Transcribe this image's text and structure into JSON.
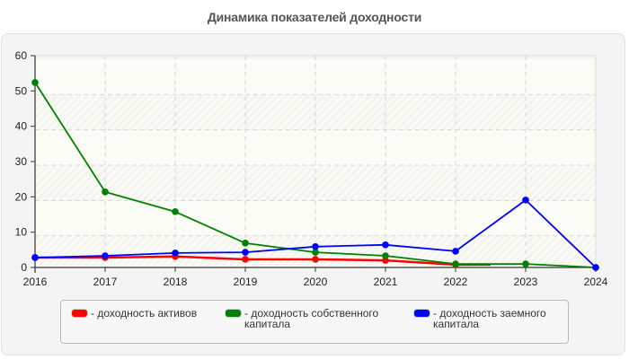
{
  "title": "Динамика показателей доходности",
  "legend": {
    "items": [
      {
        "label": "- доходность активов",
        "color": "#ff0000"
      },
      {
        "label": "- доходность собственного\nкапитала",
        "color": "#008000"
      },
      {
        "label": "- доходность заемного\nкапитала",
        "color": "#0000ff"
      }
    ]
  },
  "chart_data": {
    "type": "line",
    "title": "Динамика показателей доходности",
    "xlabel": "",
    "ylabel": "",
    "x": [
      "2016",
      "2017",
      "2018",
      "2019",
      "2020",
      "2021",
      "2022",
      "2023",
      "2024"
    ],
    "ylim": [
      0,
      60
    ],
    "yticks": [
      0,
      10,
      20,
      30,
      40,
      50,
      60
    ],
    "grid": true,
    "legend_position": "bottom",
    "series": [
      {
        "name": "доходность активов",
        "color": "#ff0000",
        "values": [
          2.8,
          2.8,
          3.1,
          2.3,
          2.3,
          2.0,
          0.8,
          null,
          null
        ]
      },
      {
        "name": "доходность собственного капитала",
        "color": "#008000",
        "values": [
          52.4,
          21.4,
          15.8,
          6.9,
          4.3,
          3.3,
          1.0,
          1.0,
          0.0
        ]
      },
      {
        "name": "доходность заемного капитала",
        "color": "#0000ff",
        "values": [
          2.8,
          3.3,
          4.1,
          4.3,
          5.9,
          6.4,
          4.6,
          19.1,
          0.0
        ]
      }
    ]
  }
}
